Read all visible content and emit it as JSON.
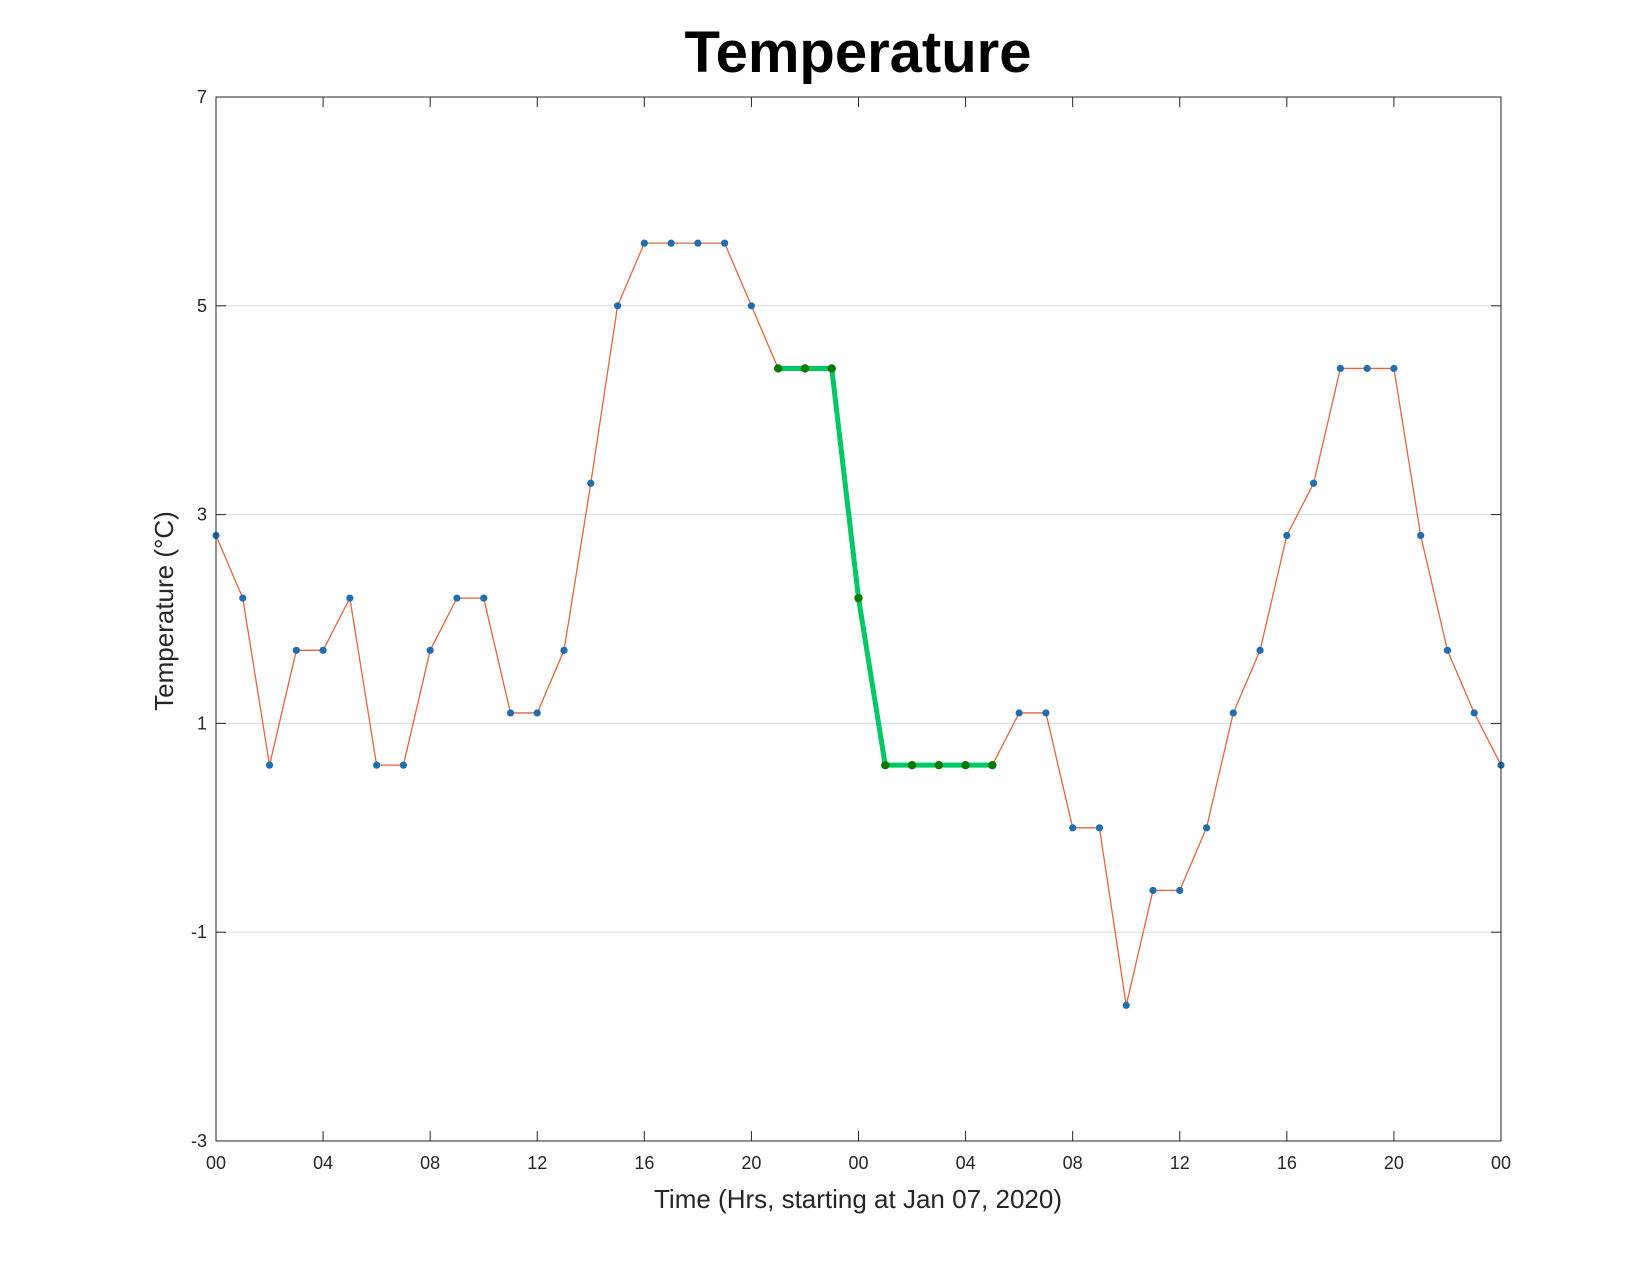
{
  "chart_data": {
    "type": "line",
    "title": "Temperature",
    "xlabel": "Time (Hrs, starting at Jan 07, 2020)",
    "ylabel": "Temperature (°C)",
    "xlim": [
      0,
      48
    ],
    "ylim": [
      -3,
      7
    ],
    "grid": "horizontal",
    "x_ticks": [
      {
        "value": 0,
        "label": "00"
      },
      {
        "value": 4,
        "label": "04"
      },
      {
        "value": 8,
        "label": "08"
      },
      {
        "value": 12,
        "label": "12"
      },
      {
        "value": 16,
        "label": "16"
      },
      {
        "value": 20,
        "label": "20"
      },
      {
        "value": 24,
        "label": "00"
      },
      {
        "value": 28,
        "label": "04"
      },
      {
        "value": 32,
        "label": "08"
      },
      {
        "value": 36,
        "label": "12"
      },
      {
        "value": 40,
        "label": "16"
      },
      {
        "value": 44,
        "label": "20"
      },
      {
        "value": 48,
        "label": "00"
      }
    ],
    "y_ticks": [
      {
        "value": -3,
        "label": "-3"
      },
      {
        "value": -1,
        "label": "-1"
      },
      {
        "value": 1,
        "label": "1"
      },
      {
        "value": 3,
        "label": "3"
      },
      {
        "value": 5,
        "label": "5"
      },
      {
        "value": 7,
        "label": "7"
      }
    ],
    "series": [
      {
        "line_color": "#e8643c",
        "marker_color": "#1f6fb0",
        "x": [
          0,
          1,
          2,
          3,
          4,
          5,
          6,
          7,
          8,
          9,
          10,
          11,
          12,
          13,
          14,
          15,
          16,
          17,
          18,
          19,
          20,
          21,
          22,
          23,
          24,
          25,
          26,
          27,
          28,
          29,
          30,
          31,
          32,
          33,
          34,
          35,
          36,
          37,
          38,
          39,
          40,
          41,
          42,
          43,
          44,
          45,
          46,
          47,
          48
        ],
        "y": [
          2.8,
          2.2,
          0.6,
          1.7,
          1.7,
          2.2,
          0.6,
          0.6,
          1.7,
          2.2,
          2.2,
          1.1,
          1.1,
          1.7,
          3.3,
          5.0,
          5.6,
          5.6,
          5.6,
          5.6,
          5.0,
          4.4,
          4.4,
          4.4,
          2.2,
          0.6,
          0.6,
          0.6,
          0.6,
          0.6,
          1.1,
          1.1,
          0.0,
          0.0,
          -1.7,
          -0.6,
          -0.6,
          0.0,
          1.1,
          1.7,
          2.8,
          3.3,
          4.4,
          4.4,
          4.4,
          2.8,
          1.7,
          1.1,
          0.6
        ]
      },
      {
        "line_color": "#00c864",
        "marker_color": "#007a00",
        "highlight": true,
        "x": [
          21,
          22,
          23,
          24,
          25,
          26,
          27,
          28,
          29
        ],
        "y": [
          4.4,
          4.4,
          4.4,
          2.2,
          0.6,
          0.6,
          0.6,
          0.6,
          0.6
        ]
      }
    ]
  }
}
